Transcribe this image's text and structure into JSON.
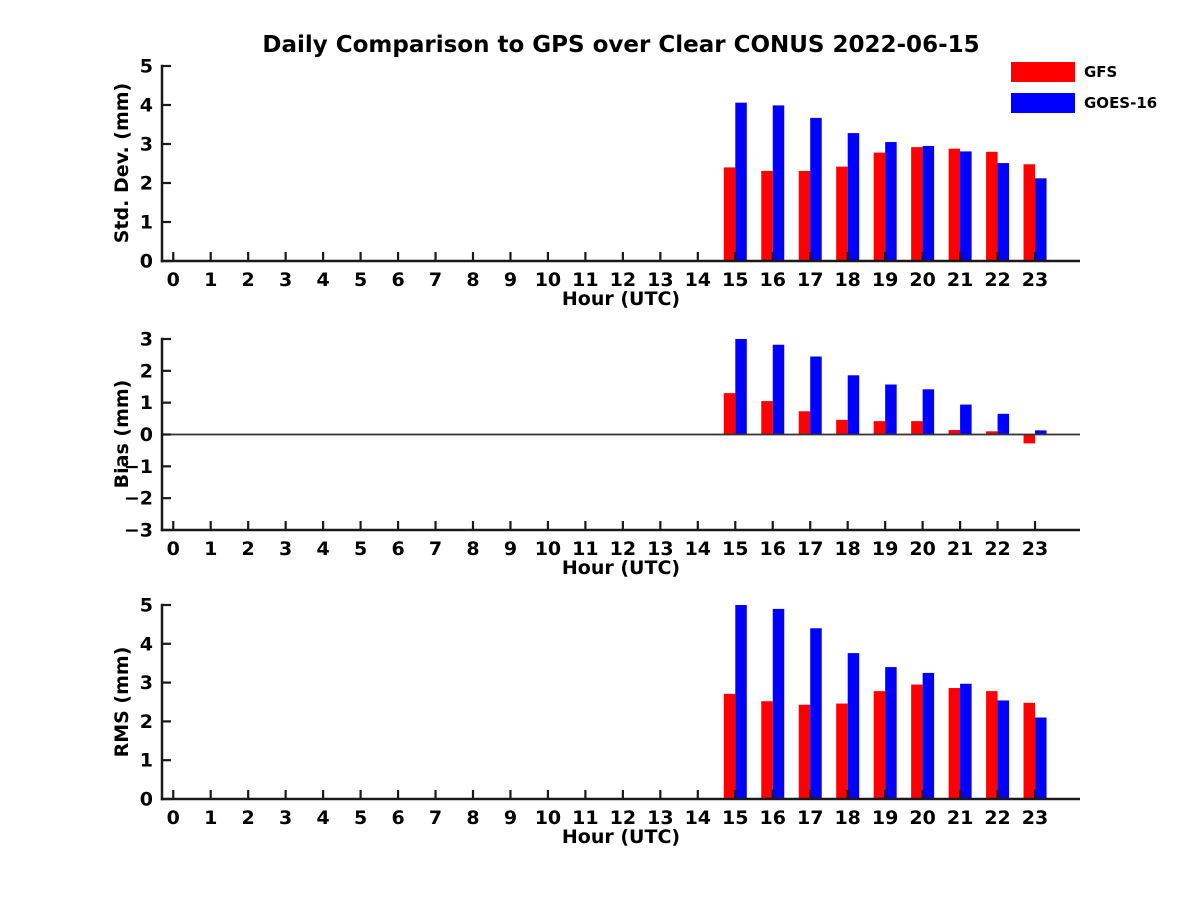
{
  "title": "Daily Comparison to GPS over Clear CONUS 2022-06-15",
  "legend": {
    "items": [
      {
        "label": "GFS",
        "color": "#ff0000"
      },
      {
        "label": "GOES-16",
        "color": "#0000ff"
      }
    ]
  },
  "colors": {
    "gfs": "#ff0000",
    "goes16": "#0000ff",
    "axis": "#1a1a1a",
    "zero_line": "#333333"
  },
  "chart_data": [
    {
      "type": "bar",
      "id": "stddev",
      "ylabel": "Std. Dev. (mm)",
      "xlabel": "Hour (UTC)",
      "x": [
        15,
        16,
        17,
        18,
        19,
        20,
        21,
        22,
        23
      ],
      "series": [
        {
          "name": "GFS",
          "color": "#ff0000",
          "values": [
            2.4,
            2.31,
            2.31,
            2.42,
            2.78,
            2.92,
            2.88,
            2.8,
            2.48
          ]
        },
        {
          "name": "GOES-16",
          "color": "#0000ff",
          "values": [
            4.06,
            3.99,
            3.67,
            3.28,
            3.05,
            2.95,
            2.81,
            2.51,
            2.12
          ]
        }
      ],
      "xlim": [
        -0.3,
        24.2
      ],
      "ylim": [
        0,
        5
      ],
      "xticks": [
        0,
        1,
        2,
        3,
        4,
        5,
        6,
        7,
        8,
        9,
        10,
        11,
        12,
        13,
        14,
        15,
        16,
        17,
        18,
        19,
        20,
        21,
        22,
        23
      ],
      "yticks": [
        0,
        1,
        2,
        3,
        4,
        5
      ],
      "zero_line": false,
      "grid": false,
      "legend_position": "northeast-outside"
    },
    {
      "type": "bar",
      "id": "bias",
      "ylabel": "Bias (mm)",
      "xlabel": "Hour (UTC)",
      "x": [
        15,
        16,
        17,
        18,
        19,
        20,
        21,
        22,
        23
      ],
      "series": [
        {
          "name": "GFS",
          "color": "#ff0000",
          "values": [
            1.3,
            1.05,
            0.73,
            0.46,
            0.42,
            0.42,
            0.14,
            0.1,
            -0.28
          ]
        },
        {
          "name": "GOES-16",
          "color": "#0000ff",
          "values": [
            3.0,
            2.82,
            2.45,
            1.86,
            1.57,
            1.42,
            0.94,
            0.65,
            0.13
          ]
        }
      ],
      "xlim": [
        -0.3,
        24.2
      ],
      "ylim": [
        -3,
        3
      ],
      "xticks": [
        0,
        1,
        2,
        3,
        4,
        5,
        6,
        7,
        8,
        9,
        10,
        11,
        12,
        13,
        14,
        15,
        16,
        17,
        18,
        19,
        20,
        21,
        22,
        23
      ],
      "yticks": [
        -3,
        -2,
        -1,
        0,
        1,
        2,
        3
      ],
      "zero_line": true,
      "grid": false
    },
    {
      "type": "bar",
      "id": "rms",
      "ylabel": "RMS (mm)",
      "xlabel": "Hour (UTC)",
      "x": [
        15,
        16,
        17,
        18,
        19,
        20,
        21,
        22,
        23
      ],
      "series": [
        {
          "name": "GFS",
          "color": "#ff0000",
          "values": [
            2.71,
            2.52,
            2.43,
            2.46,
            2.78,
            2.95,
            2.86,
            2.78,
            2.48
          ]
        },
        {
          "name": "GOES-16",
          "color": "#0000ff",
          "values": [
            5.0,
            4.9,
            4.4,
            3.76,
            3.4,
            3.25,
            2.97,
            2.54,
            2.1
          ]
        }
      ],
      "xlim": [
        -0.3,
        24.2
      ],
      "ylim": [
        0,
        5
      ],
      "xticks": [
        0,
        1,
        2,
        3,
        4,
        5,
        6,
        7,
        8,
        9,
        10,
        11,
        12,
        13,
        14,
        15,
        16,
        17,
        18,
        19,
        20,
        21,
        22,
        23
      ],
      "yticks": [
        0,
        1,
        2,
        3,
        4,
        5
      ],
      "zero_line": false,
      "grid": false
    }
  ]
}
